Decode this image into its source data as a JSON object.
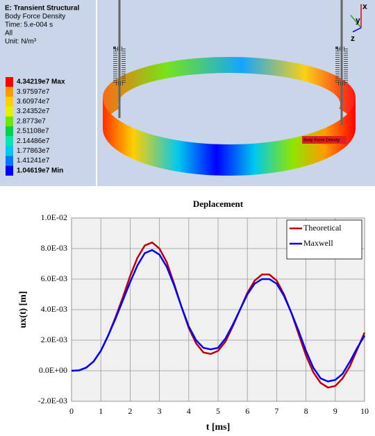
{
  "panel": {
    "title": "E: Transient Structural",
    "result": "Body Force Density",
    "time": "Time: 5.e-004 s",
    "scope": "All",
    "unit": "Unit: N/m³",
    "levels": [
      {
        "label": "4.34219e7 Max",
        "color": "#ff0000"
      },
      {
        "label": "3.97597e7",
        "color": "#ff9a00"
      },
      {
        "label": "3.60974e7",
        "color": "#ffd000"
      },
      {
        "label": "3.24352e7",
        "color": "#e6f000"
      },
      {
        "label": "2.8773e7",
        "color": "#6ee600"
      },
      {
        "label": "2.51108e7",
        "color": "#00d24a"
      },
      {
        "label": "2.14486e7",
        "color": "#00e6b4"
      },
      {
        "label": "1.77863e7",
        "color": "#00c8f0"
      },
      {
        "label": "1.41241e7",
        "color": "#0078ff"
      },
      {
        "label": "1.04619e7 Min",
        "color": "#0000ff"
      }
    ],
    "probe": "Body Force Density",
    "axes": [
      "x",
      "y",
      "z"
    ]
  },
  "chart_data": {
    "type": "line",
    "title": "Deplacement",
    "x_label": "t [ms]",
    "y_label": "ux(t) [m]",
    "x": [
      0,
      0.25,
      0.5,
      0.75,
      1,
      1.25,
      1.5,
      1.75,
      2,
      2.25,
      2.5,
      2.75,
      3,
      3.25,
      3.5,
      3.75,
      4,
      4.25,
      4.5,
      4.75,
      5,
      5.25,
      5.5,
      5.75,
      6,
      6.25,
      6.5,
      6.75,
      7,
      7.25,
      7.5,
      7.75,
      8,
      8.25,
      8.5,
      8.75,
      9,
      9.25,
      9.5,
      9.75,
      10
    ],
    "series": [
      {
        "name": "Theoretical",
        "color": "#c00000",
        "values": [
          0,
          2e-05,
          0.0002,
          0.0006,
          0.0013,
          0.0023,
          0.0035,
          0.0048,
          0.0062,
          0.0074,
          0.0082,
          0.0084,
          0.008,
          0.0071,
          0.0057,
          0.0042,
          0.0028,
          0.0018,
          0.0012,
          0.0011,
          0.0013,
          0.0019,
          0.0029,
          0.004,
          0.0051,
          0.0059,
          0.0063,
          0.0063,
          0.0059,
          0.005,
          0.0038,
          0.0024,
          0.001,
          -0.0001,
          -0.0008,
          -0.0011,
          -0.001,
          -0.0005,
          0.0003,
          0.0014,
          0.0025
        ]
      },
      {
        "name": "Maxwell",
        "color": "#0000ff",
        "values": [
          0,
          2e-05,
          0.0002,
          0.0006,
          0.0013,
          0.0023,
          0.0034,
          0.0046,
          0.0058,
          0.0069,
          0.0077,
          0.0079,
          0.0076,
          0.0068,
          0.0056,
          0.0042,
          0.0029,
          0.002,
          0.0015,
          0.0014,
          0.0015,
          0.0021,
          0.003,
          0.004,
          0.005,
          0.0057,
          0.006,
          0.006,
          0.0057,
          0.0049,
          0.0038,
          0.0026,
          0.0013,
          0.0002,
          -0.0005,
          -0.0007,
          -0.0006,
          -0.0002,
          0.0006,
          0.0015,
          0.0023
        ]
      }
    ],
    "xlim": [
      0,
      10
    ],
    "xticks": [
      0,
      1,
      2,
      3,
      4,
      5,
      6,
      7,
      8,
      9,
      10
    ],
    "ylim": [
      -0.002,
      0.01
    ],
    "yticks": [
      {
        "value": -0.002,
        "label": "-2.0E-03"
      },
      {
        "value": 0,
        "label": "0.0E+00"
      },
      {
        "value": 0.002,
        "label": "2.0E-03"
      },
      {
        "value": 0.004,
        "label": "4.0E-03"
      },
      {
        "value": 0.006,
        "label": "6.0E-03"
      },
      {
        "value": 0.008,
        "label": "8.0E-03"
      },
      {
        "value": 0.01,
        "label": "1.0E-02"
      }
    ],
    "grid": true,
    "legend": "upper right"
  }
}
